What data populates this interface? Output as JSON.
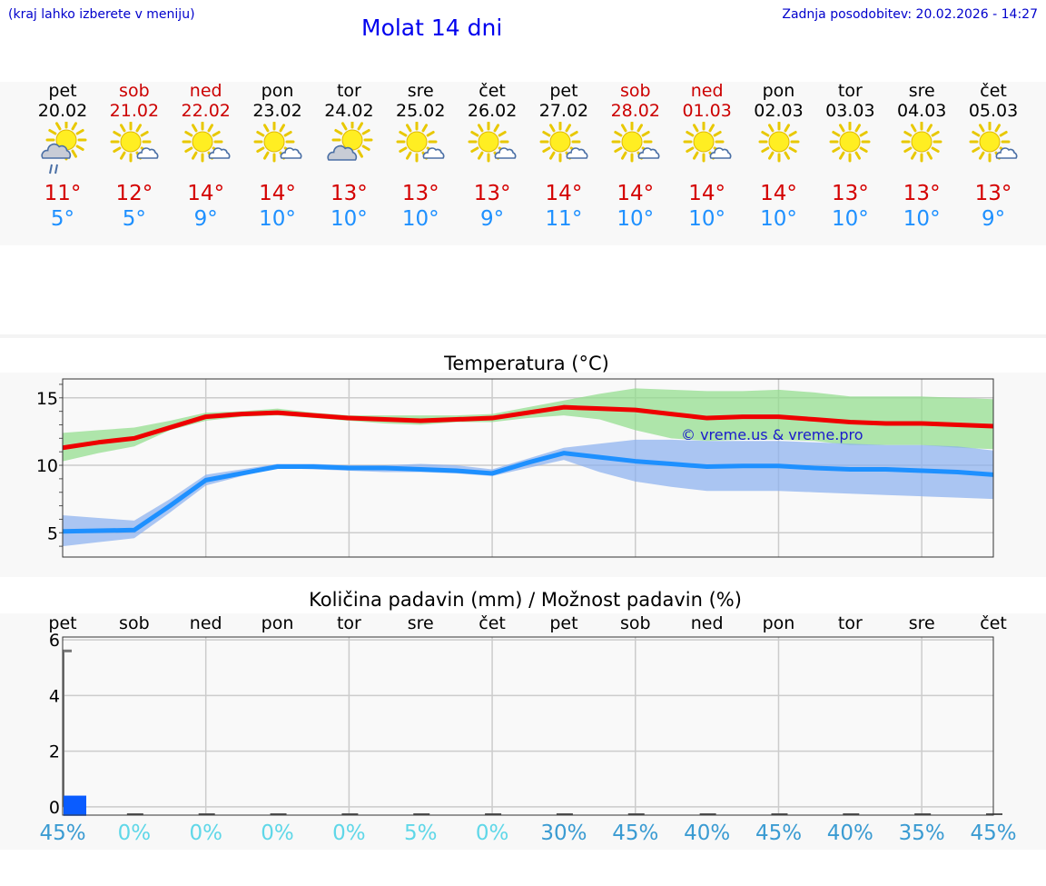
{
  "header": {
    "hint": "(kraj lahko izberete v meniju)",
    "title": "Molat 14 dni",
    "updated": "Zadnja posodobitev: 20.02.2026 - 14:27"
  },
  "days": [
    {
      "name": "pet",
      "date": "20.02",
      "weekend": false,
      "max": "11°",
      "min": "5°",
      "icon": "sun-cloud-rain-icon"
    },
    {
      "name": "sob",
      "date": "21.02",
      "weekend": true,
      "max": "12°",
      "min": "5°",
      "icon": "sun-small-cloud-icon"
    },
    {
      "name": "ned",
      "date": "22.02",
      "weekend": true,
      "max": "14°",
      "min": "9°",
      "icon": "sun-small-cloud-icon"
    },
    {
      "name": "pon",
      "date": "23.02",
      "weekend": false,
      "max": "14°",
      "min": "10°",
      "icon": "sun-small-cloud-icon"
    },
    {
      "name": "tor",
      "date": "24.02",
      "weekend": false,
      "max": "13°",
      "min": "10°",
      "icon": "sun-cloud-icon"
    },
    {
      "name": "sre",
      "date": "25.02",
      "weekend": false,
      "max": "13°",
      "min": "10°",
      "icon": "sun-small-cloud-icon"
    },
    {
      "name": "čet",
      "date": "26.02",
      "weekend": false,
      "max": "13°",
      "min": "9°",
      "icon": "sun-small-cloud-icon"
    },
    {
      "name": "pet",
      "date": "27.02",
      "weekend": false,
      "max": "14°",
      "min": "11°",
      "icon": "sun-small-cloud-icon"
    },
    {
      "name": "sob",
      "date": "28.02",
      "weekend": true,
      "max": "14°",
      "min": "10°",
      "icon": "sun-small-cloud-icon"
    },
    {
      "name": "ned",
      "date": "01.03",
      "weekend": true,
      "max": "14°",
      "min": "10°",
      "icon": "sun-small-cloud-icon"
    },
    {
      "name": "pon",
      "date": "02.03",
      "weekend": false,
      "max": "14°",
      "min": "10°",
      "icon": "sun-icon"
    },
    {
      "name": "tor",
      "date": "03.03",
      "weekend": false,
      "max": "13°",
      "min": "10°",
      "icon": "sun-icon"
    },
    {
      "name": "sre",
      "date": "04.03",
      "weekend": false,
      "max": "13°",
      "min": "10°",
      "icon": "sun-icon"
    },
    {
      "name": "čet",
      "date": "05.03",
      "weekend": false,
      "max": "13°",
      "min": "9°",
      "icon": "sun-small-cloud-icon"
    }
  ],
  "chart_data": [
    {
      "type": "line",
      "title": "Temperatura (°C)",
      "watermark": "© vreme.us & vreme.pro",
      "ylim": [
        3.2,
        16.4
      ],
      "yticks": [
        "5",
        "10",
        "15"
      ],
      "x": [
        0,
        0.5,
        1,
        1.5,
        2,
        2.5,
        3,
        3.5,
        4,
        4.5,
        5,
        5.5,
        6,
        6.5,
        7,
        7.5,
        8,
        8.5,
        9,
        9.5,
        10,
        10.5,
        11,
        11.5,
        12,
        12.5,
        13
      ],
      "series": [
        {
          "name": "max",
          "color": "#ee0000",
          "values": [
            11.3,
            11.7,
            12.0,
            12.8,
            13.6,
            13.8,
            13.9,
            13.7,
            13.5,
            13.4,
            13.3,
            13.4,
            13.5,
            13.9,
            14.3,
            14.2,
            14.1,
            13.8,
            13.5,
            13.6,
            13.6,
            13.4,
            13.2,
            13.1,
            13.1,
            13.0,
            12.9
          ],
          "band_low": [
            10.3,
            10.9,
            11.4,
            12.6,
            13.3,
            13.6,
            13.7,
            13.5,
            13.3,
            13.1,
            13.0,
            13.2,
            13.2,
            13.5,
            13.7,
            13.4,
            12.6,
            12.0,
            11.8,
            11.9,
            11.9,
            11.8,
            11.5,
            11.5,
            11.5,
            11.3,
            11.2
          ],
          "band_high": [
            12.4,
            12.6,
            12.8,
            13.3,
            13.9,
            14.0,
            14.2,
            13.9,
            13.7,
            13.7,
            13.7,
            13.7,
            13.8,
            14.3,
            14.8,
            15.3,
            15.7,
            15.6,
            15.5,
            15.5,
            15.6,
            15.4,
            15.1,
            15.1,
            15.1,
            15.0,
            14.9
          ]
        },
        {
          "name": "min",
          "color": "#1e90ff",
          "values": [
            5.1,
            5.15,
            5.2,
            7.0,
            8.9,
            9.4,
            9.9,
            9.9,
            9.8,
            9.8,
            9.7,
            9.6,
            9.4,
            10.2,
            10.9,
            10.6,
            10.3,
            10.1,
            9.9,
            9.95,
            9.95,
            9.8,
            9.7,
            9.7,
            9.6,
            9.5,
            9.3
          ],
          "band_low": [
            4.0,
            4.3,
            4.6,
            6.5,
            8.5,
            9.2,
            9.8,
            9.7,
            9.6,
            9.5,
            9.5,
            9.4,
            9.2,
            9.8,
            10.4,
            9.5,
            8.8,
            8.4,
            8.1,
            8.1,
            8.1,
            8.0,
            7.9,
            7.8,
            7.7,
            7.6,
            7.5
          ],
          "band_high": [
            6.3,
            6.1,
            5.9,
            7.5,
            9.3,
            9.7,
            10.1,
            10.1,
            10.0,
            10.0,
            10.1,
            10.0,
            9.7,
            10.5,
            11.3,
            11.6,
            11.9,
            11.9,
            11.8,
            11.8,
            11.8,
            11.7,
            11.6,
            11.5,
            11.5,
            11.4,
            11.1
          ]
        }
      ]
    },
    {
      "type": "bar",
      "title": "Količina padavin (mm) / Možnost padavin (%)",
      "ylim": [
        -0.3,
        6.1
      ],
      "yticks": [
        "0",
        "2",
        "4",
        "6"
      ],
      "categories": [
        "pet",
        "sob",
        "ned",
        "pon",
        "tor",
        "sre",
        "čet",
        "pet",
        "sob",
        "ned",
        "pon",
        "tor",
        "sre",
        "čet"
      ],
      "values": [
        0.4,
        0,
        0,
        0,
        0,
        0,
        0,
        0,
        0,
        0,
        0,
        0,
        0,
        0
      ],
      "chance": [
        "45%",
        "0%",
        "0%",
        "0%",
        "0%",
        "5%",
        "0%",
        "30%",
        "45%",
        "40%",
        "45%",
        "40%",
        "35%",
        "45%"
      ],
      "range_max": 5.6
    }
  ]
}
